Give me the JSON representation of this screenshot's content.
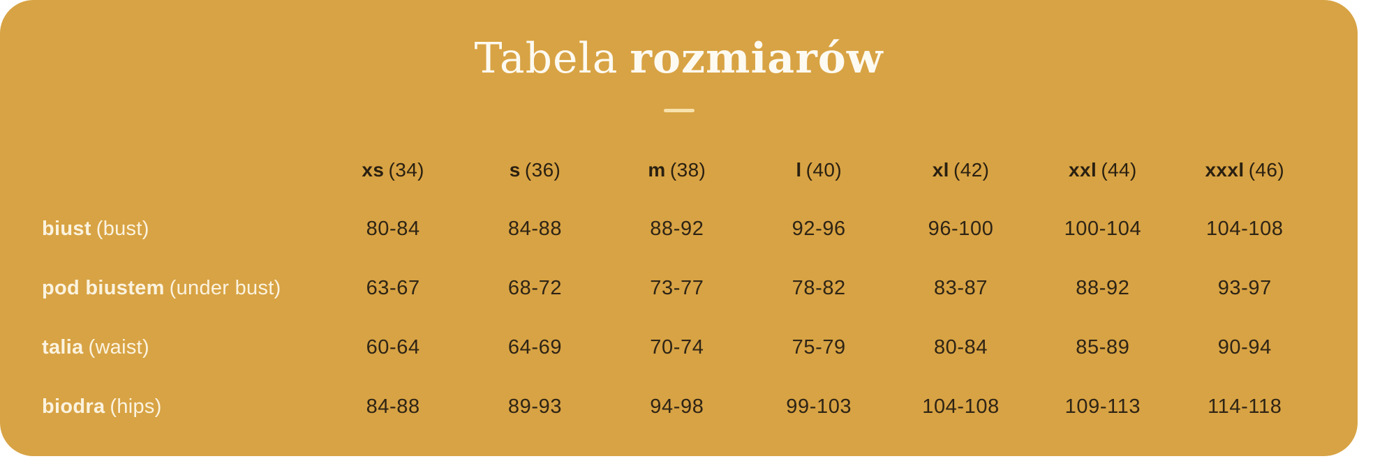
{
  "title": {
    "light": "Tabela",
    "bold": "rozmiarów"
  },
  "colors": {
    "card_background": "#d8a344",
    "page_background": "#ffffff",
    "title_text": "#fdfaf1",
    "divider": "#f8e2ac",
    "dark_text": "#2a2011",
    "label_text": "#fbf3e0"
  },
  "table": {
    "columns": [
      {
        "size": "xs",
        "number": "(34)"
      },
      {
        "size": "s",
        "number": "(36)"
      },
      {
        "size": "m",
        "number": "(38)"
      },
      {
        "size": "l",
        "number": "(40)"
      },
      {
        "size": "xl",
        "number": "(42)"
      },
      {
        "size": "xxl",
        "number": "(44)"
      },
      {
        "size": "xxxl",
        "number": "(46)"
      }
    ],
    "rows": [
      {
        "label": "biust",
        "label_en": "(bust)",
        "values": [
          "80-84",
          "84-88",
          "88-92",
          "92-96",
          "96-100",
          "100-104",
          "104-108"
        ]
      },
      {
        "label": "pod biustem",
        "label_en": "(under bust)",
        "values": [
          "63-67",
          "68-72",
          "73-77",
          "78-82",
          "83-87",
          "88-92",
          "93-97"
        ]
      },
      {
        "label": "talia",
        "label_en": "(waist)",
        "values": [
          "60-64",
          "64-69",
          "70-74",
          "75-79",
          "80-84",
          "85-89",
          "90-94"
        ]
      },
      {
        "label": "biodra",
        "label_en": "(hips)",
        "values": [
          "84-88",
          "89-93",
          "94-98",
          "99-103",
          "104-108",
          "109-113",
          "114-118"
        ]
      }
    ]
  },
  "chart_data": {
    "type": "table",
    "title": "Tabela rozmiarów",
    "columns": [
      "xs (34)",
      "s (36)",
      "m (38)",
      "l (40)",
      "xl (42)",
      "xxl (44)",
      "xxxl (46)"
    ],
    "rows": [
      {
        "label": "biust (bust)",
        "values": [
          "80-84",
          "84-88",
          "88-92",
          "92-96",
          "96-100",
          "100-104",
          "104-108"
        ]
      },
      {
        "label": "pod biustem (under bust)",
        "values": [
          "63-67",
          "68-72",
          "73-77",
          "78-82",
          "83-87",
          "88-92",
          "93-97"
        ]
      },
      {
        "label": "talia (waist)",
        "values": [
          "60-64",
          "64-69",
          "70-74",
          "75-79",
          "80-84",
          "85-89",
          "90-94"
        ]
      },
      {
        "label": "biodra (hips)",
        "values": [
          "84-88",
          "89-93",
          "94-98",
          "99-103",
          "104-108",
          "109-113",
          "114-118"
        ]
      }
    ]
  }
}
